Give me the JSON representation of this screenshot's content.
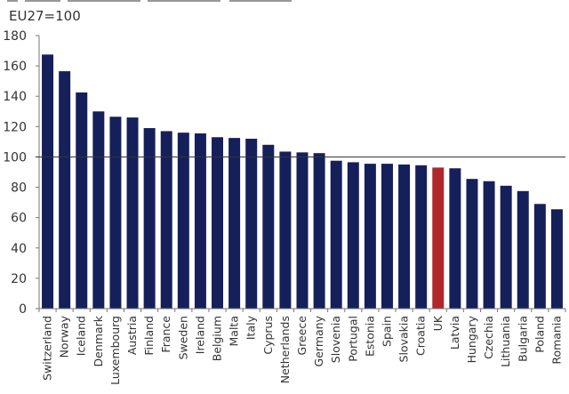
{
  "chart_data": {
    "type": "bar",
    "title": "",
    "subtitle": "EU27=100",
    "xlabel": "",
    "ylabel": "",
    "ylim": [
      0,
      180
    ],
    "yticks": [
      0,
      20,
      40,
      60,
      80,
      100,
      120,
      140,
      160,
      180
    ],
    "reference_line": 100,
    "grid": false,
    "legend": "none",
    "colors": {
      "default": "#15205a",
      "highlight": "#b0262a",
      "reference": "#333333"
    },
    "highlight_category": "UK",
    "categories": [
      "Switzerland",
      "Norway",
      "Iceland",
      "Denmark",
      "Luxembourg",
      "Austria",
      "Finland",
      "France",
      "Sweden",
      "Ireland",
      "Belgium",
      "Malta",
      "Italy",
      "Cyprus",
      "Netherlands",
      "Greece",
      "Germany",
      "Slovenia",
      "Portugal",
      "Estonia",
      "Spain",
      "Slovakia",
      "Croatia",
      "UK",
      "Latvia",
      "Hungary",
      "Czechia",
      "Lithuania",
      "Bulgaria",
      "Poland",
      "Romania"
    ],
    "values": [
      167.5,
      156.5,
      142.5,
      130,
      126.5,
      126,
      119,
      117,
      116,
      115.5,
      113,
      112.5,
      112,
      108,
      103.5,
      103,
      102.5,
      97.5,
      96.5,
      95.5,
      95.5,
      95,
      94.5,
      93,
      92.5,
      85.5,
      84,
      81,
      77.5,
      69,
      65.5
    ]
  }
}
